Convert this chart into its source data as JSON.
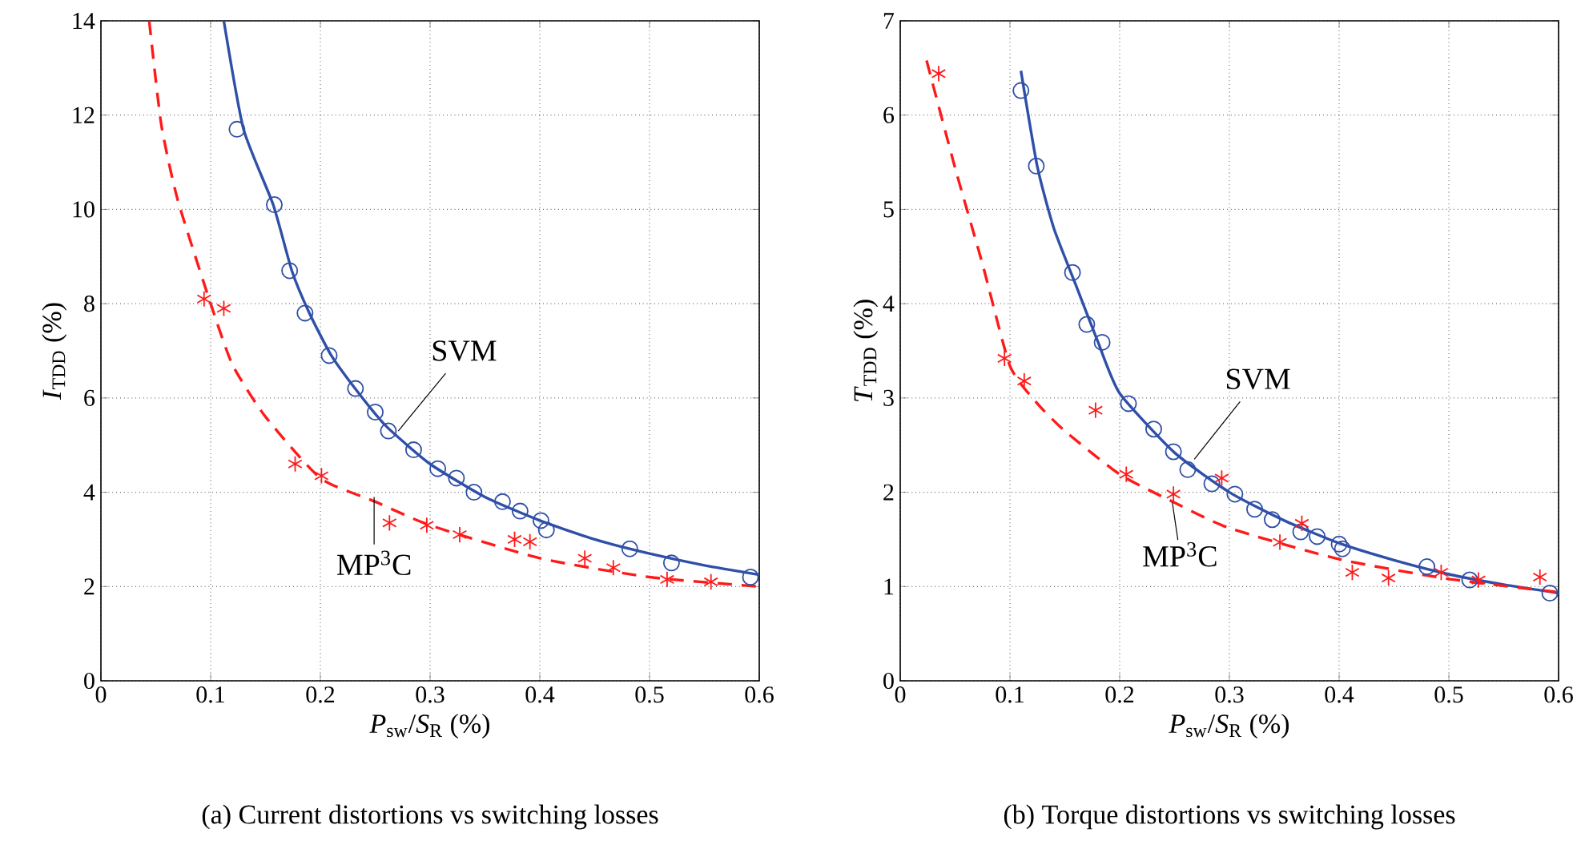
{
  "chart_data": [
    {
      "type": "scatter",
      "title": "(a) Current distortions vs switching losses",
      "xlabel": "*P*$_{sw}$/*S*$_{R}$ (%)",
      "ylabel": "*I*$_{TDD}$ (%)",
      "xlim": [
        0,
        0.6
      ],
      "ylim": [
        0,
        14
      ],
      "xticks": [
        0,
        0.1,
        0.2,
        0.3,
        0.4,
        0.5,
        0.6
      ],
      "yticks": [
        0,
        2,
        4,
        6,
        8,
        10,
        12,
        14
      ],
      "grid": true,
      "series": [
        {
          "type": "line",
          "color": "#2f4fa8",
          "line_style": "solid",
          "marker": "none",
          "x": [
            0.112,
            0.13,
            0.157,
            0.174,
            0.19,
            0.21,
            0.235,
            0.26,
            0.3,
            0.35,
            0.4,
            0.45,
            0.5,
            0.55,
            0.6
          ],
          "values": [
            14.0,
            11.7,
            10.1,
            8.7,
            7.8,
            6.9,
            6.1,
            5.4,
            4.6,
            3.9,
            3.4,
            3.0,
            2.7,
            2.45,
            2.25
          ]
        },
        {
          "type": "line",
          "color": "#ff1a1a",
          "line_style": "dashed",
          "marker": "none",
          "x": [
            0.044,
            0.055,
            0.07,
            0.1,
            0.12,
            0.15,
            0.2,
            0.25,
            0.3,
            0.4,
            0.5,
            0.6
          ],
          "values": [
            14.0,
            11.8,
            10.2,
            8.0,
            6.7,
            5.6,
            4.3,
            3.8,
            3.3,
            2.6,
            2.2,
            2.0
          ]
        },
        {
          "color": "#2f4fa8",
          "marker": "circle",
          "x": [
            0.124,
            0.158,
            0.172,
            0.186,
            0.208,
            0.232,
            0.25,
            0.262,
            0.285,
            0.307,
            0.324,
            0.34,
            0.366,
            0.382,
            0.401,
            0.406,
            0.482,
            0.52,
            0.592
          ],
          "values": [
            11.7,
            10.1,
            8.7,
            7.8,
            6.9,
            6.2,
            5.7,
            5.3,
            4.9,
            4.5,
            4.3,
            4.0,
            3.8,
            3.6,
            3.4,
            3.2,
            2.8,
            2.5,
            2.2
          ]
        },
        {
          "color": "#ff1a1a",
          "marker": "cross",
          "x": [
            0.094,
            0.112,
            0.177,
            0.201,
            0.263,
            0.297,
            0.327,
            0.377,
            0.391,
            0.441,
            0.467,
            0.516,
            0.556
          ],
          "values": [
            8.1,
            7.9,
            4.6,
            4.35,
            3.35,
            3.3,
            3.1,
            3.0,
            2.95,
            2.6,
            2.4,
            2.15,
            2.1
          ]
        }
      ],
      "annotations": [
        {
          "text": "SVM",
          "x": 0.271,
          "y": 5.3
        },
        {
          "text": "MP$^{3}$C",
          "x": 0.249,
          "y": 3.9
        }
      ]
    },
    {
      "type": "scatter",
      "title": "(b) Torque distortions vs switching losses",
      "xlabel": "*P*$_{sw}$/*S*$_{R}$ (%)",
      "ylabel": "*T*$_{TDD}$ (%)",
      "xlim": [
        0,
        0.6
      ],
      "ylim": [
        0,
        7
      ],
      "xticks": [
        0,
        0.1,
        0.2,
        0.3,
        0.4,
        0.5,
        0.6
      ],
      "yticks": [
        0,
        1,
        2,
        3,
        4,
        5,
        6,
        7
      ],
      "grid": true,
      "series": [
        {
          "type": "line",
          "color": "#2f4fa8",
          "line_style": "solid",
          "marker": "none",
          "x": [
            0.11,
            0.125,
            0.14,
            0.16,
            0.18,
            0.2,
            0.25,
            0.3,
            0.35,
            0.4,
            0.45,
            0.5,
            0.55,
            0.6
          ],
          "values": [
            6.47,
            5.45,
            4.8,
            4.2,
            3.6,
            3.05,
            2.42,
            2.0,
            1.7,
            1.46,
            1.28,
            1.13,
            1.02,
            0.93
          ]
        },
        {
          "type": "line",
          "color": "#ff1a1a",
          "line_style": "dashed",
          "marker": "none",
          "x": [
            0.024,
            0.05,
            0.075,
            0.1,
            0.125,
            0.15,
            0.2,
            0.25,
            0.3,
            0.4,
            0.5,
            0.6
          ],
          "values": [
            6.58,
            5.44,
            4.42,
            3.34,
            2.94,
            2.65,
            2.19,
            1.89,
            1.62,
            1.29,
            1.08,
            0.94
          ]
        },
        {
          "color": "#2f4fa8",
          "marker": "circle",
          "x": [
            0.11,
            0.124,
            0.157,
            0.17,
            0.184,
            0.208,
            0.231,
            0.249,
            0.262,
            0.284,
            0.305,
            0.323,
            0.339,
            0.365,
            0.38,
            0.4,
            0.403,
            0.48,
            0.519,
            0.592
          ],
          "values": [
            6.26,
            5.46,
            4.33,
            3.78,
            3.59,
            2.94,
            2.67,
            2.43,
            2.24,
            2.09,
            1.98,
            1.82,
            1.71,
            1.58,
            1.53,
            1.45,
            1.4,
            1.21,
            1.07,
            0.93
          ]
        },
        {
          "color": "#ff1a1a",
          "marker": "cross",
          "x": [
            0.035,
            0.095,
            0.113,
            0.178,
            0.206,
            0.249,
            0.293,
            0.346,
            0.366,
            0.412,
            0.445,
            0.493,
            0.527,
            0.583
          ],
          "values": [
            6.44,
            3.42,
            3.18,
            2.87,
            2.19,
            1.98,
            2.15,
            1.47,
            1.67,
            1.15,
            1.09,
            1.15,
            1.07,
            1.1
          ]
        }
      ],
      "annotations": [
        {
          "text": "SVM",
          "x": 0.268,
          "y": 2.35
        },
        {
          "text": "MP$^{3}$C",
          "x": 0.248,
          "y": 1.89
        }
      ]
    }
  ]
}
